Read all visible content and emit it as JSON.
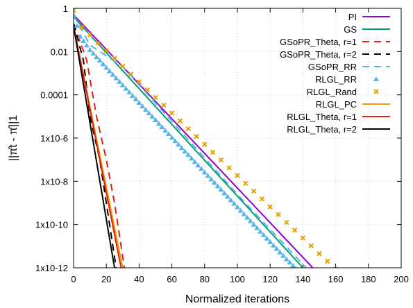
{
  "chart_data": {
    "type": "line",
    "xlabel": "Normalized iterations",
    "ylabel": "||π̂t - π̂||1",
    "xlim": [
      0,
      200
    ],
    "ylim": [
      1e-12,
      1
    ],
    "ylog": true,
    "grid": true,
    "legend_position": "top-right",
    "x_ticks": [
      0,
      20,
      40,
      60,
      80,
      100,
      120,
      140,
      160,
      180,
      200
    ],
    "y_ticks": [
      {
        "value": 1,
        "label": "1"
      },
      {
        "value": 0.01,
        "label": "0.01"
      },
      {
        "value": 0.0001,
        "label": "0.0001"
      },
      {
        "value": 1e-06,
        "label": "1x10-6"
      },
      {
        "value": 1e-08,
        "label": "1x10-8"
      },
      {
        "value": 1e-10,
        "label": "1x10-10"
      },
      {
        "value": 1e-12,
        "label": "1x10-12"
      }
    ],
    "series": [
      {
        "name": "PI",
        "color": "#9400d3",
        "style": "solid",
        "points": [
          [
            0,
            0.5
          ],
          [
            146,
            1e-12
          ]
        ]
      },
      {
        "name": "GS",
        "color": "#009e73",
        "style": "solid",
        "points": [
          [
            0,
            0.4
          ],
          [
            140,
            1e-12
          ]
        ]
      },
      {
        "name": "GSoPR_Theta, r=1",
        "color": "#e51e10",
        "style": "dashed",
        "points": [
          [
            0,
            0.2
          ],
          [
            8,
            0.004
          ],
          [
            14,
            1e-05
          ],
          [
            20,
            1e-07
          ],
          [
            25,
            1e-09
          ],
          [
            29,
            1e-11
          ],
          [
            31,
            1e-12
          ]
        ]
      },
      {
        "name": "GSoPR_Theta, r=2",
        "color": "#000000",
        "style": "dashed",
        "points": [
          [
            0,
            0.2
          ],
          [
            6,
            0.004
          ],
          [
            10,
            1e-05
          ],
          [
            16,
            1e-07
          ],
          [
            20,
            1e-09
          ],
          [
            24,
            1e-11
          ],
          [
            26,
            1e-12
          ]
        ]
      },
      {
        "name": "GSoPR_RR",
        "color": "#56b4e9",
        "style": "dashed",
        "points": [
          [
            0,
            0.5
          ],
          [
            10,
            0.02
          ],
          [
            30,
            0.002
          ],
          [
            100,
            2.5e-09
          ],
          [
            142,
            1e-12
          ]
        ]
      },
      {
        "name": "RLGL_RR",
        "color": "#56b4e9",
        "style": "triangles",
        "points": [
          [
            0,
            0.5
          ],
          [
            4,
            0.05
          ],
          [
            10,
            0.012
          ],
          [
            20,
            0.0018
          ],
          [
            30,
            0.00028
          ],
          [
            40,
            4.3e-05
          ],
          [
            50,
            6.8e-06
          ],
          [
            60,
            1.06e-06
          ],
          [
            70,
            1.66e-07
          ],
          [
            80,
            2.6e-08
          ],
          [
            90,
            4.1e-09
          ],
          [
            100,
            6.4e-10
          ],
          [
            110,
            1e-10
          ],
          [
            120,
            1.57e-11
          ],
          [
            130,
            2.5e-12
          ],
          [
            136,
            8.8e-13
          ]
        ]
      },
      {
        "name": "RLGL_Rand",
        "color": "#e69f00",
        "style": "crosses",
        "points": [
          [
            0,
            0.8
          ],
          [
            5,
            0.13
          ],
          [
            10,
            0.06
          ],
          [
            15,
            0.025
          ],
          [
            20,
            0.011
          ],
          [
            25,
            0.0048
          ],
          [
            30,
            0.0021
          ],
          [
            35,
            0.00091
          ],
          [
            40,
            0.0004
          ],
          [
            45,
            0.00017
          ],
          [
            50,
            7.5e-05
          ],
          [
            55,
            3.3e-05
          ],
          [
            60,
            1.43e-05
          ],
          [
            65,
            6.2e-06
          ],
          [
            70,
            2.7e-06
          ],
          [
            75,
            1.18e-06
          ],
          [
            80,
            5.1e-07
          ],
          [
            85,
            2.2e-07
          ],
          [
            90,
            9.7e-08
          ],
          [
            95,
            4.2e-08
          ],
          [
            100,
            1.84e-08
          ],
          [
            105,
            8e-09
          ],
          [
            110,
            3.5e-09
          ],
          [
            115,
            1.52e-09
          ],
          [
            120,
            6.6e-10
          ],
          [
            125,
            2.9e-10
          ],
          [
            130,
            1.25e-10
          ],
          [
            135,
            5.5e-11
          ],
          [
            140,
            2.4e-11
          ],
          [
            145,
            1.04e-11
          ],
          [
            150,
            4.5e-12
          ],
          [
            155,
            2e-12
          ],
          [
            160,
            8.6e-13
          ],
          [
            165,
            3.8e-13
          ]
        ]
      },
      {
        "name": "RLGL_PC",
        "color": "#e69f00",
        "style": "solid",
        "points": [
          [
            0,
            0.15
          ],
          [
            30,
            1e-12
          ]
        ]
      },
      {
        "name": "RLGL_Theta, r=1",
        "color": "#e51e10",
        "style": "solid",
        "points": [
          [
            0,
            0.15
          ],
          [
            29,
            1e-12
          ]
        ]
      },
      {
        "name": "RLGL_Theta, r=2",
        "color": "#000000",
        "style": "solid",
        "points": [
          [
            0,
            0.15
          ],
          [
            25,
            1e-12
          ]
        ]
      }
    ]
  }
}
